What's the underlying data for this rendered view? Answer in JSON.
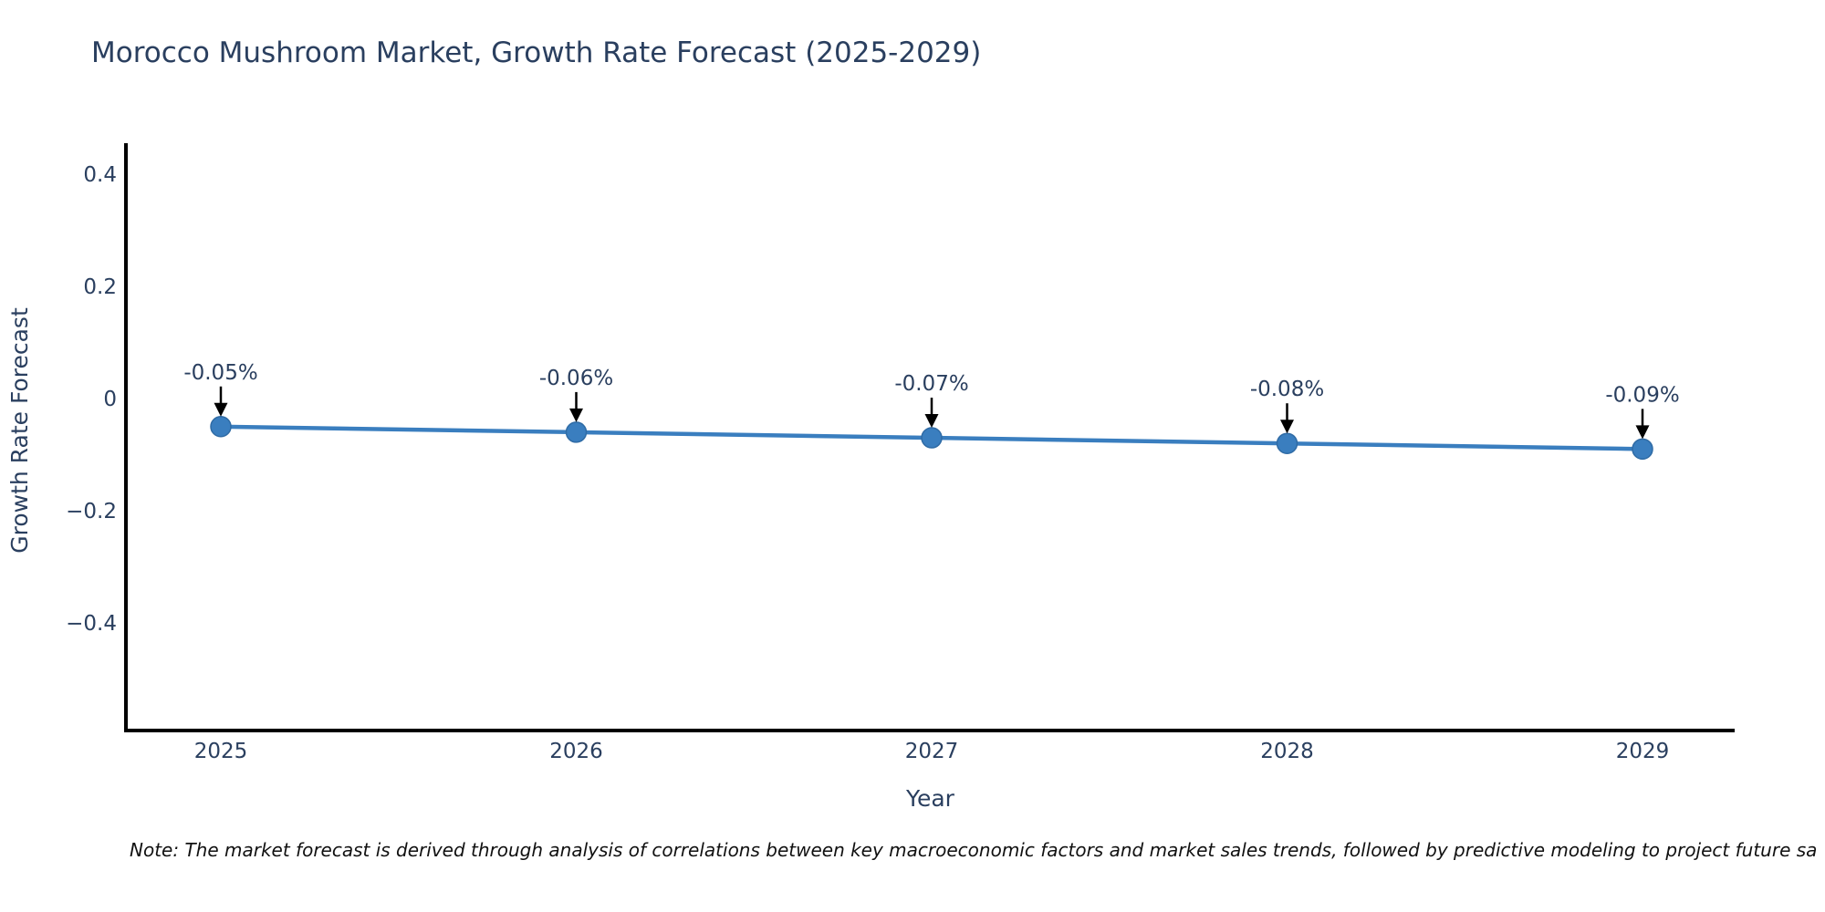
{
  "title": "Morocco Mushroom Market, Growth Rate Forecast (2025-2029)",
  "footnote": "Note: The market forecast is derived through analysis of correlations between key macroeconomic factors and market sales trends, followed by predictive modeling to project future sa",
  "chart_data": {
    "type": "line",
    "title": "Morocco Mushroom Market, Growth Rate Forecast (2025-2029)",
    "xlabel": "Year",
    "ylabel": "Growth Rate Forecast",
    "categories": [
      "2025",
      "2026",
      "2027",
      "2028",
      "2029"
    ],
    "values": [
      -0.05,
      -0.06,
      -0.07,
      -0.08,
      -0.09
    ],
    "point_labels": [
      "-0.05%",
      "-0.06%",
      "-0.07%",
      "-0.08%",
      "-0.09%"
    ],
    "ytick_values": [
      0.4,
      0.2,
      0,
      -0.2,
      -0.4
    ],
    "ytick_labels": [
      "0.4",
      "0.2",
      "0",
      "−0.2",
      "−0.4"
    ],
    "ylim": [
      -0.6,
      0.46
    ],
    "grid": false,
    "legend_position": "none",
    "colors": {
      "line": "#3a7ebf",
      "marker": "#3a7ebf",
      "marker_edge": "#2f6ba5",
      "axis": "#000000",
      "text": "#2a3f5f",
      "annotation_text": "#2a3f5f",
      "annotation_arrow": "#000000",
      "note_text": "#111111",
      "background": "#ffffff"
    }
  }
}
